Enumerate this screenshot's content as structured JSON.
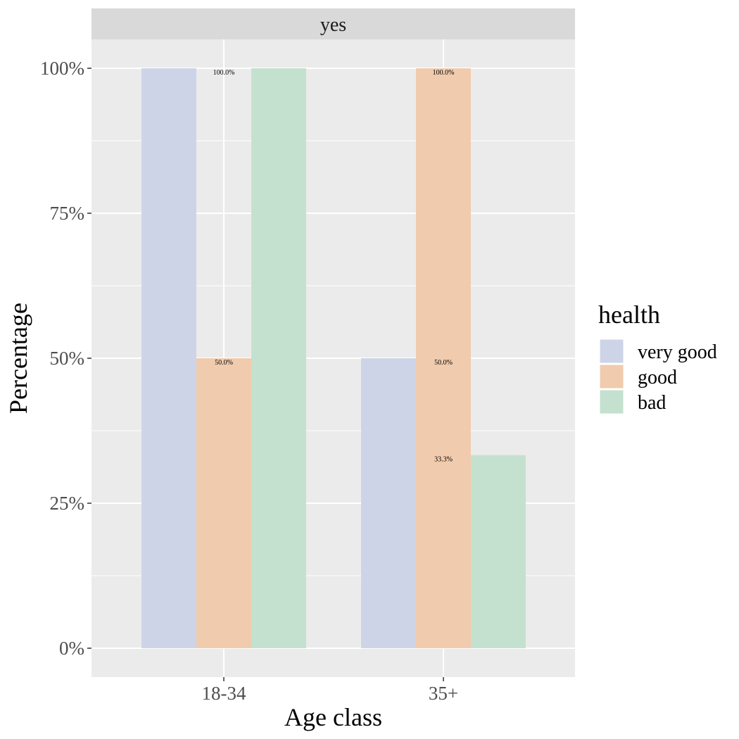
{
  "chart_data": {
    "type": "bar",
    "facet_label": "yes",
    "categories": [
      "18-34",
      "35+"
    ],
    "series": [
      {
        "name": "very good",
        "color": "#CED4E8",
        "values": [
          100.0,
          50.0
        ]
      },
      {
        "name": "good",
        "color": "#F1CBAD",
        "values": [
          50.0,
          100.0
        ]
      },
      {
        "name": "bad",
        "color": "#C4E1CF",
        "values": [
          100.0,
          33.3
        ]
      }
    ],
    "data_labels": [
      {
        "category": "18-34",
        "value": 100.0,
        "text": "100.0%"
      },
      {
        "category": "18-34",
        "value": 50.0,
        "text": "50.0%"
      },
      {
        "category": "35+",
        "value": 100.0,
        "text": "100.0%"
      },
      {
        "category": "35+",
        "value": 50.0,
        "text": "50.0%"
      },
      {
        "category": "35+",
        "value": 33.3,
        "text": "33.3%"
      }
    ],
    "xlabel": "Age class",
    "ylabel": "Percentage",
    "ylim": [
      0,
      100
    ],
    "yticks": [
      0,
      25,
      50,
      75,
      100
    ],
    "ytick_labels": [
      "0%",
      "25%",
      "50%",
      "75%",
      "100%"
    ],
    "grid": true,
    "legend": {
      "title": "health",
      "position": "right"
    }
  }
}
